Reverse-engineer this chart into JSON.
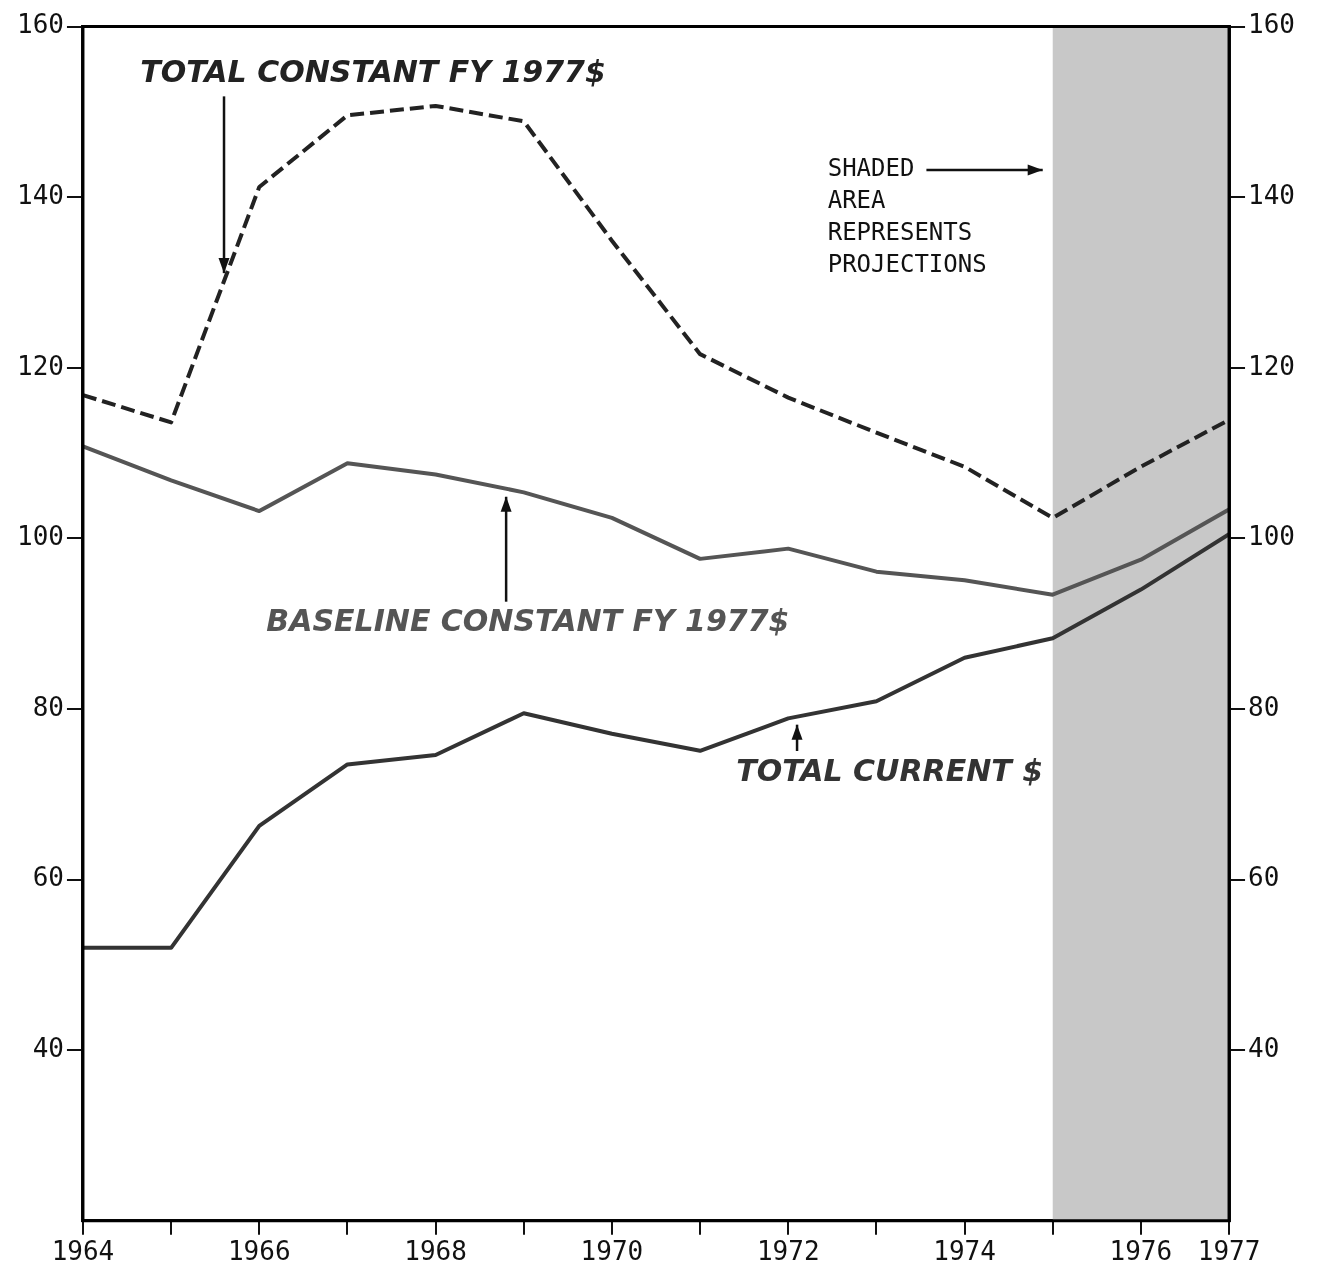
{
  "chart_data": {
    "type": "line",
    "x": [
      1964,
      1965,
      1966,
      1967,
      1968,
      1969,
      1970,
      1971,
      1972,
      1973,
      1974,
      1975,
      1976,
      1977
    ],
    "series": [
      {
        "name": "TOTAL CONSTANT FY 1977$",
        "color": "#222222",
        "line_style": "dashed",
        "values": [
          116.8,
          113.6,
          141.2,
          149.6,
          150.7,
          148.9,
          134.9,
          121.6,
          116.5,
          112.4,
          108.4,
          102.4,
          108.4,
          113.9
        ]
      },
      {
        "name": "BASELINE CONSTANT FY 1977$",
        "color": "#555555",
        "line_style": "solid",
        "values": [
          110.8,
          106.8,
          103.2,
          108.8,
          107.5,
          105.4,
          102.4,
          97.6,
          98.8,
          96.1,
          95.1,
          93.4,
          97.5,
          103.4
        ]
      },
      {
        "name": "TOTAL CURRENT $",
        "color": "#333333",
        "line_style": "solid",
        "values": [
          52,
          52,
          66.3,
          73.5,
          74.6,
          79.5,
          77.1,
          75.1,
          78.9,
          80.9,
          86,
          88.3,
          94,
          100.5
        ]
      }
    ],
    "xlim": [
      1964,
      1977
    ],
    "xticks": [
      1964,
      {
        "value": 1965,
        "label": null
      },
      1966,
      {
        "value": 1967,
        "label": null
      },
      1968,
      {
        "value": 1969,
        "label": null
      },
      1970,
      {
        "value": 1971,
        "label": null
      },
      1972,
      {
        "value": 1973,
        "label": null
      },
      1974,
      {
        "value": 1975,
        "label": null
      },
      1976,
      1977
    ],
    "ylim": [
      20,
      160
    ],
    "yticks": [
      40,
      60,
      80,
      100,
      120,
      140,
      160
    ],
    "y2lim": [
      20,
      160
    ],
    "y2ticks": [
      40,
      60,
      80,
      100,
      120,
      140,
      160
    ],
    "bands": [
      {
        "axis": "x",
        "from": 1975,
        "to": 1977,
        "label": "SHADED AREA REPRESENTS PROJECTIONS",
        "color": "#c8c8c8"
      }
    ],
    "grid": false,
    "legend": false,
    "marker": "none"
  }
}
